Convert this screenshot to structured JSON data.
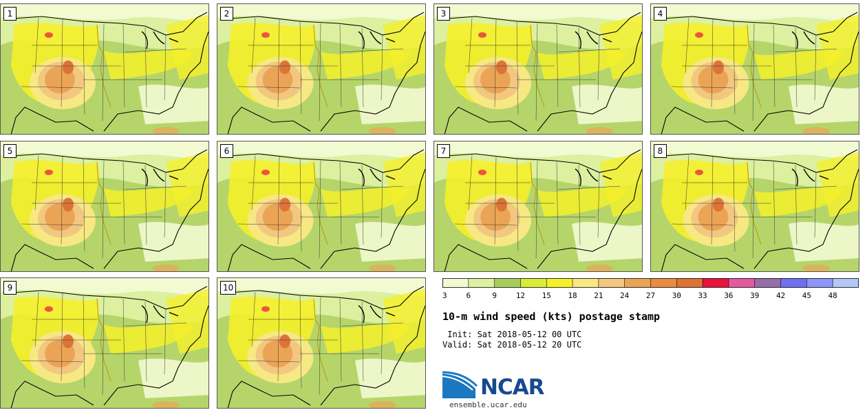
{
  "panels": [
    {
      "label": "1"
    },
    {
      "label": "2"
    },
    {
      "label": "3"
    },
    {
      "label": "4"
    },
    {
      "label": "5"
    },
    {
      "label": "6"
    },
    {
      "label": "7"
    },
    {
      "label": "8"
    },
    {
      "label": "9"
    },
    {
      "label": "10"
    }
  ],
  "colorbar": {
    "levels": [
      3,
      6,
      9,
      12,
      15,
      18,
      21,
      24,
      27,
      30,
      33,
      36,
      39,
      42,
      45,
      48
    ],
    "colors": [
      "#f2fad2",
      "#dcf0a0",
      "#a8cc5a",
      "#d8ec38",
      "#f5f02a",
      "#f7e884",
      "#f2c880",
      "#eba456",
      "#e88c40",
      "#dc7438",
      "#e8143c",
      "#e25aa0",
      "#966ea8",
      "#6e70f0",
      "#8c96f8",
      "#b4c8f8"
    ]
  },
  "title": "10-m wind speed (kts) postage stamp",
  "init_line": " Init: Sat 2018-05-12 00 UTC",
  "valid_line": "Valid: Sat 2018-05-12 20 UTC",
  "logo": {
    "text": "NCAR",
    "url": "ensemble.ucar.edu"
  }
}
